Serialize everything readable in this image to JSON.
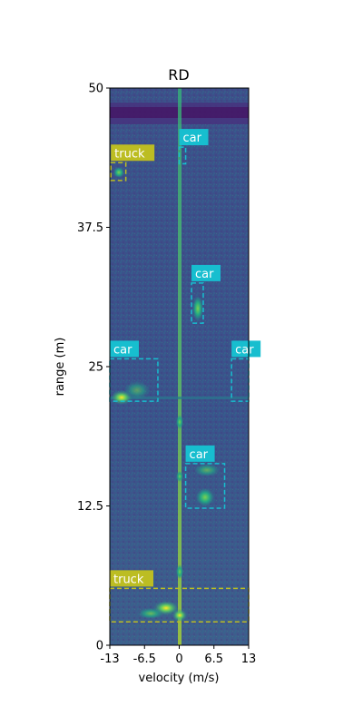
{
  "chart_data": {
    "type": "heatmap",
    "title": "RD",
    "xlabel": "velocity (m/s)",
    "ylabel": "range (m)",
    "xlim": [
      -13,
      13
    ],
    "ylim": [
      0,
      50
    ],
    "xticks": [
      {
        "value": -13,
        "label": "-13"
      },
      {
        "value": -6.5,
        "label": "-6.5"
      },
      {
        "value": 0,
        "label": "0"
      },
      {
        "value": 6.5,
        "label": "6.5"
      },
      {
        "value": 13,
        "label": "13"
      }
    ],
    "yticks": [
      {
        "value": 0,
        "label": "0"
      },
      {
        "value": 12.5,
        "label": "12.5"
      },
      {
        "value": 25,
        "label": "25"
      },
      {
        "value": 37.5,
        "label": "37.5"
      },
      {
        "value": 50,
        "label": "50"
      }
    ],
    "colormap": "viridis",
    "colors": {
      "background": "#3b528b",
      "low": "#46327e",
      "mid": "#21918c",
      "high": "#fde725",
      "car": "#17becf",
      "truck": "#bcbd22"
    },
    "detections": [
      {
        "label": "truck",
        "xmin": -12.8,
        "xmax": -10,
        "ymin": 41.7,
        "ymax": 43.3
      },
      {
        "label": "car",
        "xmin": 0,
        "xmax": 1.2,
        "ymin": 43.2,
        "ymax": 44.7
      },
      {
        "label": "car",
        "xmin": 2.3,
        "xmax": 4.5,
        "ymin": 28.9,
        "ymax": 32.5
      },
      {
        "label": "car",
        "xmin": 9.8,
        "xmax": 13,
        "ymin": 21.9,
        "ymax": 25.7
      },
      {
        "label": "car",
        "xmin": -13,
        "xmax": -4,
        "ymin": 21.9,
        "ymax": 25.7
      },
      {
        "label": "car",
        "xmin": 1.2,
        "xmax": 8.5,
        "ymin": 12.3,
        "ymax": 16.3
      },
      {
        "label": "truck",
        "xmin": -13,
        "xmax": 13,
        "ymin": 2.1,
        "ymax": 5.1
      }
    ]
  }
}
